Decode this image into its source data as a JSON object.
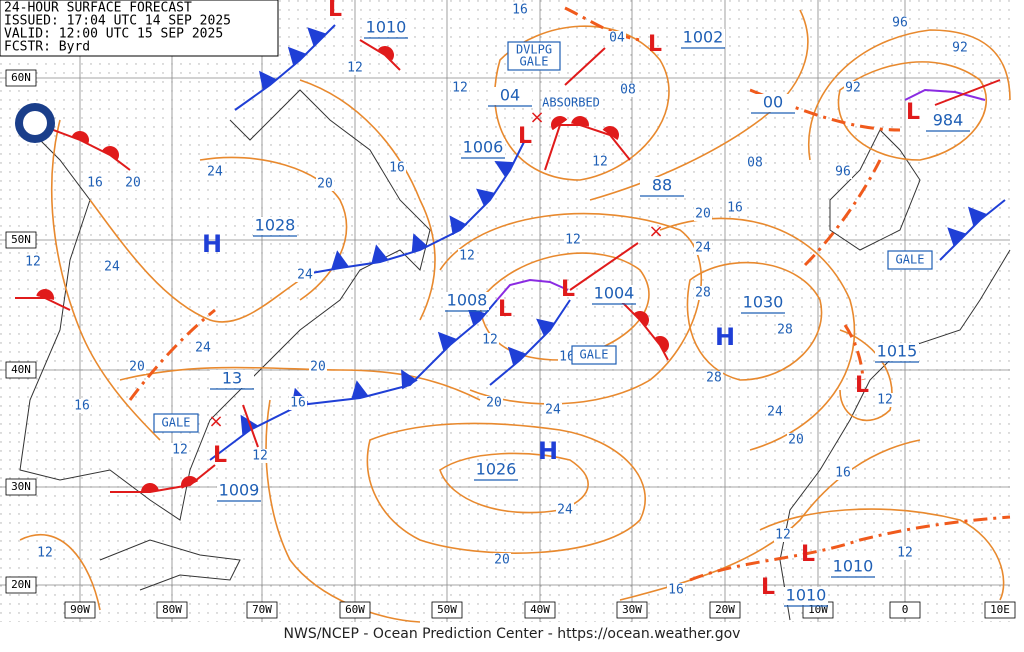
{
  "header": {
    "lines": [
      "24-HOUR SURFACE FORECAST",
      "ISSUED: 17:04 UTC 14 SEP 2025",
      "VALID:  12:00 UTC 15 SEP 2025",
      "FCSTR:  Byrd"
    ]
  },
  "lat_labels": [
    "60N",
    "50N",
    "40N",
    "30N",
    "20N"
  ],
  "lon_labels": [
    "90W",
    "80W",
    "70W",
    "60W",
    "50W",
    "40W",
    "30W",
    "20W",
    "10W",
    "0",
    "10E"
  ],
  "highs": [
    "H",
    "H",
    "H"
  ],
  "lows": [
    "L",
    "L",
    "L",
    "L",
    "L",
    "L",
    "L",
    "L",
    "L",
    "L"
  ],
  "pressures": [
    "1010",
    "1002",
    "984",
    "1006",
    "88",
    "1028",
    "1008",
    "1004",
    "1030",
    "1015",
    "13",
    "1026",
    "1009",
    "1010",
    "1010",
    "04",
    "00"
  ],
  "isobar_labels": [
    "16",
    "20",
    "24",
    "20",
    "16",
    "12",
    "12",
    "16",
    "08",
    "12",
    "08",
    "16",
    "20",
    "24",
    "28",
    "28",
    "28",
    "24",
    "20",
    "16",
    "12",
    "12",
    "12",
    "16",
    "20",
    "24",
    "24",
    "20",
    "16",
    "12",
    "12",
    "12",
    "24",
    "24",
    "24",
    "20",
    "20",
    "16",
    "16",
    "12",
    "12",
    "12",
    "12",
    "96",
    "92",
    "92",
    "96",
    "04"
  ],
  "gale_tags": [
    "GALE",
    "GALE",
    "GALE"
  ],
  "dvlpg_gale": [
    "DVLPG",
    "GALE"
  ],
  "absorbed": "ABSORBED",
  "footer": "NWS/NCEP - Ocean Prediction Center - https://ocean.weather.gov"
}
